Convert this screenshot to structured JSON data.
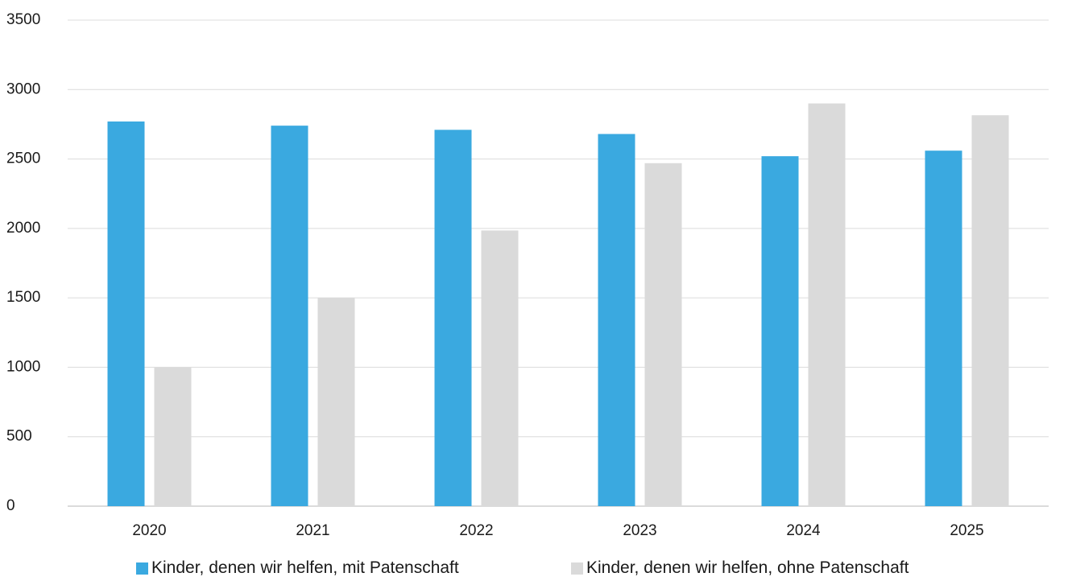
{
  "chart_data": {
    "type": "bar",
    "title": "",
    "xlabel": "",
    "ylabel": "",
    "categories": [
      "2020",
      "2021",
      "2022",
      "2023",
      "2024",
      "2025"
    ],
    "ylim": [
      0,
      3500
    ],
    "yticks": [
      0,
      500,
      1000,
      1500,
      2000,
      2500,
      3000,
      3500
    ],
    "grid": true,
    "legend_position": "bottom",
    "series": [
      {
        "name": "Kinder, denen wir helfen, mit Patenschaft",
        "color": "#3aa9e0",
        "values": [
          2770,
          2740,
          2710,
          2680,
          2520,
          2560
        ]
      },
      {
        "name": "Kinder, denen wir helfen, ohne Patenschaft",
        "color": "#dadada",
        "values": [
          1000,
          1500,
          1985,
          2470,
          2900,
          2815
        ]
      }
    ]
  }
}
